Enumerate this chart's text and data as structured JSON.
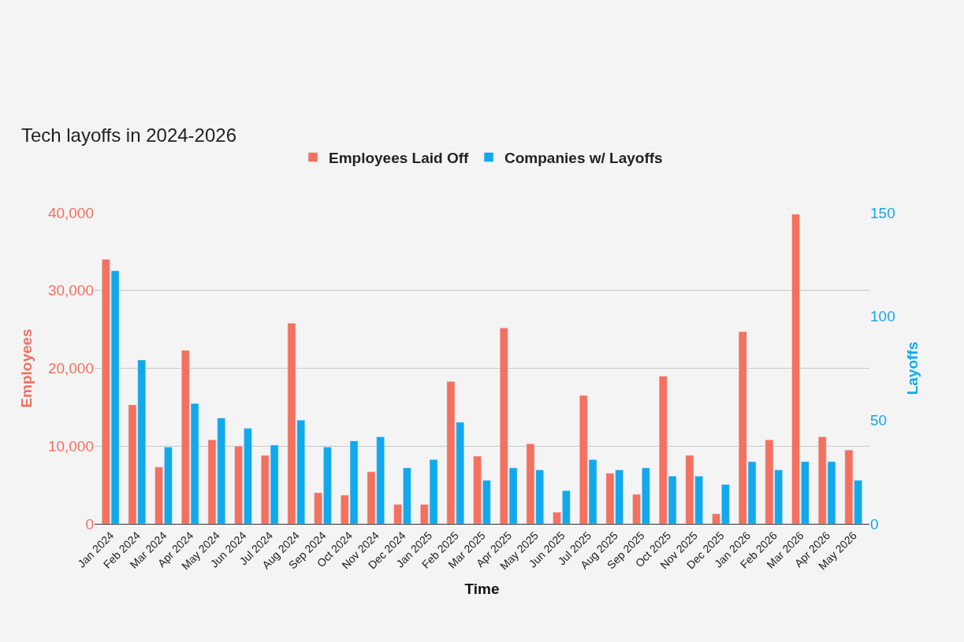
{
  "chart_data": {
    "type": "bar",
    "title": "Tech layoffs in 2024-2026",
    "xlabel": "Time",
    "ylabel": "Employees",
    "y2label": "Layoffs",
    "categories": [
      "Jan 2024",
      "Feb 2024",
      "Mar 2024",
      "Apr 2024",
      "May 2024",
      "Jun 2024",
      "Jul 2024",
      "Aug 2024",
      "Sep 2024",
      "Oct 2024",
      "Nov 2024",
      "Dec 2024",
      "Jan 2025",
      "Feb 2025",
      "Mar 2025",
      "Apr 2025",
      "May 2025",
      "Jun 2025",
      "Jul 2025",
      "Aug 2025",
      "Sep 2025",
      "Oct 2025",
      "Nov 2025",
      "Dec 2025",
      "Jan 2026",
      "Feb 2026",
      "Mar 2026",
      "Apr 2026",
      "May 2026"
    ],
    "series": [
      {
        "name": "Employees Laid Off",
        "color": "#f4705f",
        "values": [
          34000,
          15300,
          7300,
          22300,
          10800,
          10000,
          8800,
          25800,
          4000,
          3700,
          6700,
          2500,
          2500,
          18300,
          8700,
          25200,
          10300,
          1500,
          16500,
          6500,
          3800,
          19000,
          8800,
          1300,
          24700,
          10800,
          39800,
          11200,
          9500
        ]
      },
      {
        "name": "Companies w/ Layoffs",
        "color": "#12a9ec",
        "axis": "y2",
        "values": [
          122,
          79,
          37,
          58,
          51,
          46,
          38,
          50,
          37,
          40,
          42,
          27,
          31,
          49,
          21,
          27,
          26,
          16,
          31,
          26,
          27,
          23,
          23,
          19,
          30,
          26,
          30,
          30,
          21
        ]
      }
    ],
    "ylim": [
      0,
      40000
    ],
    "yticks": [
      {
        "value": 0,
        "label": "0"
      },
      {
        "value": 10000,
        "label": "10,000"
      },
      {
        "value": 20000,
        "label": "20,000"
      },
      {
        "value": 30000,
        "label": "30,000"
      },
      {
        "value": 40000,
        "label": "40,000"
      }
    ],
    "y2lim": [
      0,
      150
    ],
    "y2ticks": [
      0,
      50,
      100,
      150
    ],
    "grid": "y",
    "legend": "top"
  }
}
